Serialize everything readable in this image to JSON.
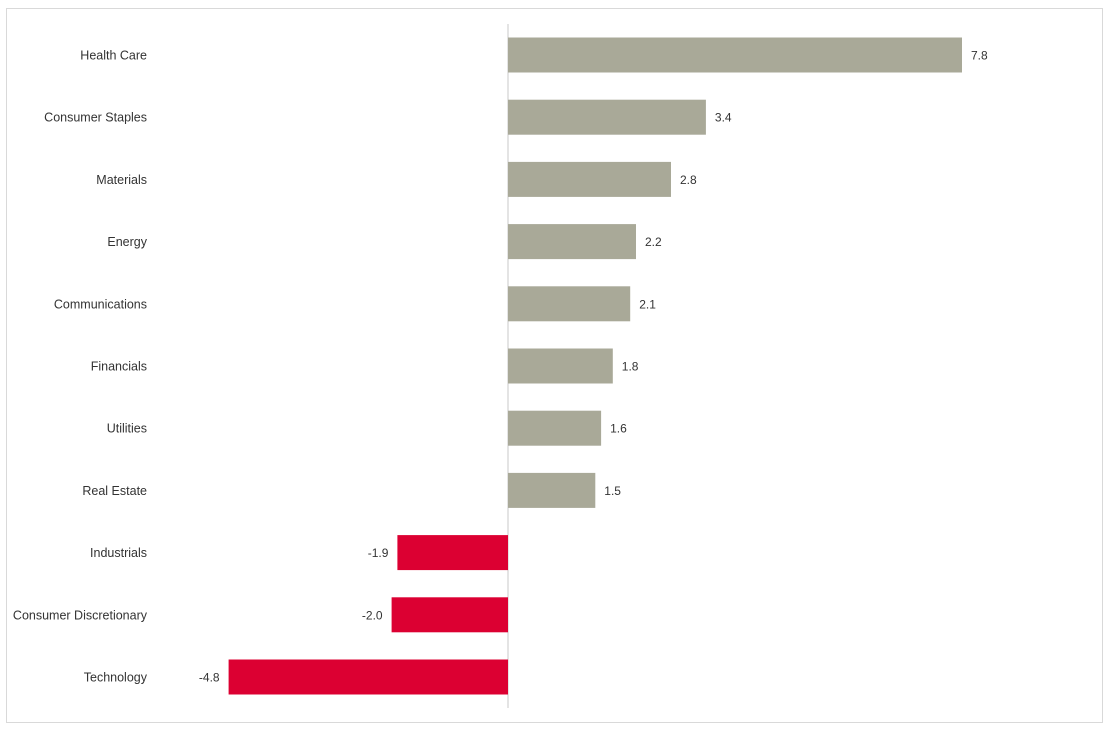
{
  "colors": {
    "positive": "#A9A998",
    "negative": "#DC0032",
    "axis": "#c8c8c8",
    "text": "#333333",
    "border": "#d9d9d9"
  },
  "chart_data": {
    "type": "bar",
    "orientation": "horizontal",
    "title": "",
    "xlabel": "",
    "ylabel": "",
    "categories": [
      "Health Care",
      "Consumer Staples",
      "Materials",
      "Energy",
      "Communications",
      "Financials",
      "Utilities",
      "Real Estate",
      "Industrials",
      "Consumer Discretionary",
      "Technology"
    ],
    "values": [
      7.8,
      3.4,
      2.8,
      2.2,
      2.1,
      1.8,
      1.6,
      1.5,
      -1.9,
      -2.0,
      -4.8
    ],
    "value_labels": [
      "7.8",
      "3.4",
      "2.8",
      "2.2",
      "2.1",
      "1.8",
      "1.6",
      "1.5",
      "-1.9",
      "-2.0",
      "-4.8"
    ],
    "xlim": [
      -8.7,
      10.0
    ],
    "grid": false,
    "legend": "none"
  }
}
